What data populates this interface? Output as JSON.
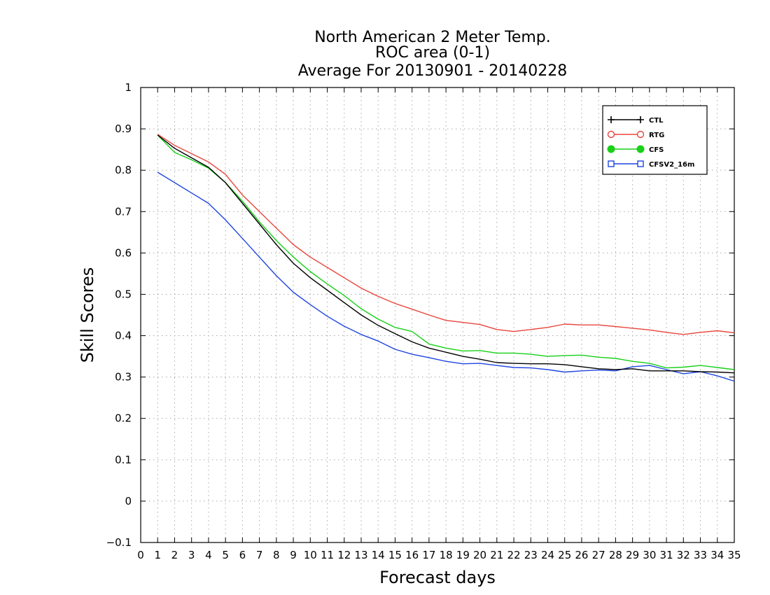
{
  "chart_data": {
    "type": "line",
    "title_lines": [
      "North American 2 Meter Temp.",
      "ROC area (0-1)",
      "Average For 20130901 - 20140228"
    ],
    "xlabel": "Forecast days",
    "ylabel": "Skill Scores",
    "xlim": [
      0,
      35
    ],
    "ylim": [
      -0.1,
      1
    ],
    "x_ticks": [
      0,
      1,
      2,
      3,
      4,
      5,
      6,
      7,
      8,
      9,
      10,
      11,
      12,
      13,
      14,
      15,
      16,
      17,
      18,
      19,
      20,
      21,
      22,
      23,
      24,
      25,
      26,
      27,
      28,
      29,
      30,
      31,
      32,
      33,
      34,
      35
    ],
    "y_ticks": [
      -0.1,
      0,
      0.1,
      0.2,
      0.3,
      0.4,
      0.5,
      0.6,
      0.7,
      0.8,
      0.9,
      1
    ],
    "y_tick_labels": [
      "−0.1",
      "0",
      "0.1",
      "0.2",
      "0.3",
      "0.4",
      "0.5",
      "0.6",
      "0.7",
      "0.8",
      "0.9",
      "1"
    ],
    "grid": true,
    "legend_position": "top-right",
    "x": [
      1,
      2,
      3,
      4,
      5,
      6,
      7,
      8,
      9,
      10,
      11,
      12,
      13,
      14,
      15,
      16,
      17,
      18,
      19,
      20,
      21,
      22,
      23,
      24,
      25,
      26,
      27,
      28,
      29,
      30,
      31,
      32,
      33,
      34,
      35
    ],
    "series": [
      {
        "name": "CTL",
        "color": "#000000",
        "marker": "plus",
        "values": [
          0.885,
          0.853,
          0.83,
          0.807,
          0.77,
          0.72,
          0.67,
          0.62,
          0.575,
          0.54,
          0.51,
          0.48,
          0.45,
          0.425,
          0.405,
          0.385,
          0.37,
          0.36,
          0.35,
          0.343,
          0.335,
          0.333,
          0.332,
          0.332,
          0.33,
          0.325,
          0.32,
          0.318,
          0.32,
          0.315,
          0.315,
          0.315,
          0.313,
          0.312,
          0.31
        ]
      },
      {
        "name": "RTG",
        "color": "#e8453c",
        "marker": "open-circle",
        "values": [
          0.887,
          0.86,
          0.84,
          0.82,
          0.79,
          0.74,
          0.7,
          0.66,
          0.62,
          0.59,
          0.565,
          0.54,
          0.515,
          0.495,
          0.478,
          0.464,
          0.45,
          0.437,
          0.432,
          0.427,
          0.415,
          0.41,
          0.415,
          0.42,
          0.428,
          0.426,
          0.426,
          0.422,
          0.418,
          0.414,
          0.408,
          0.403,
          0.408,
          0.412,
          0.407
        ]
      },
      {
        "name": "CFS",
        "color": "#17d017",
        "marker": "filled-circle",
        "values": [
          0.885,
          0.843,
          0.825,
          0.805,
          0.77,
          0.725,
          0.675,
          0.63,
          0.59,
          0.555,
          0.525,
          0.497,
          0.465,
          0.44,
          0.42,
          0.41,
          0.38,
          0.37,
          0.363,
          0.364,
          0.358,
          0.358,
          0.355,
          0.35,
          0.352,
          0.353,
          0.348,
          0.345,
          0.338,
          0.333,
          0.322,
          0.324,
          0.328,
          0.323,
          0.318
        ]
      },
      {
        "name": "CFSV2_16m",
        "color": "#1f45e0",
        "marker": "open-square",
        "values": [
          0.795,
          0.77,
          0.745,
          0.72,
          0.68,
          0.635,
          0.59,
          0.545,
          0.505,
          0.475,
          0.447,
          0.423,
          0.403,
          0.387,
          0.367,
          0.355,
          0.347,
          0.338,
          0.332,
          0.333,
          0.328,
          0.323,
          0.322,
          0.318,
          0.312,
          0.315,
          0.317,
          0.315,
          0.325,
          0.328,
          0.318,
          0.308,
          0.313,
          0.303,
          0.29
        ]
      }
    ]
  }
}
